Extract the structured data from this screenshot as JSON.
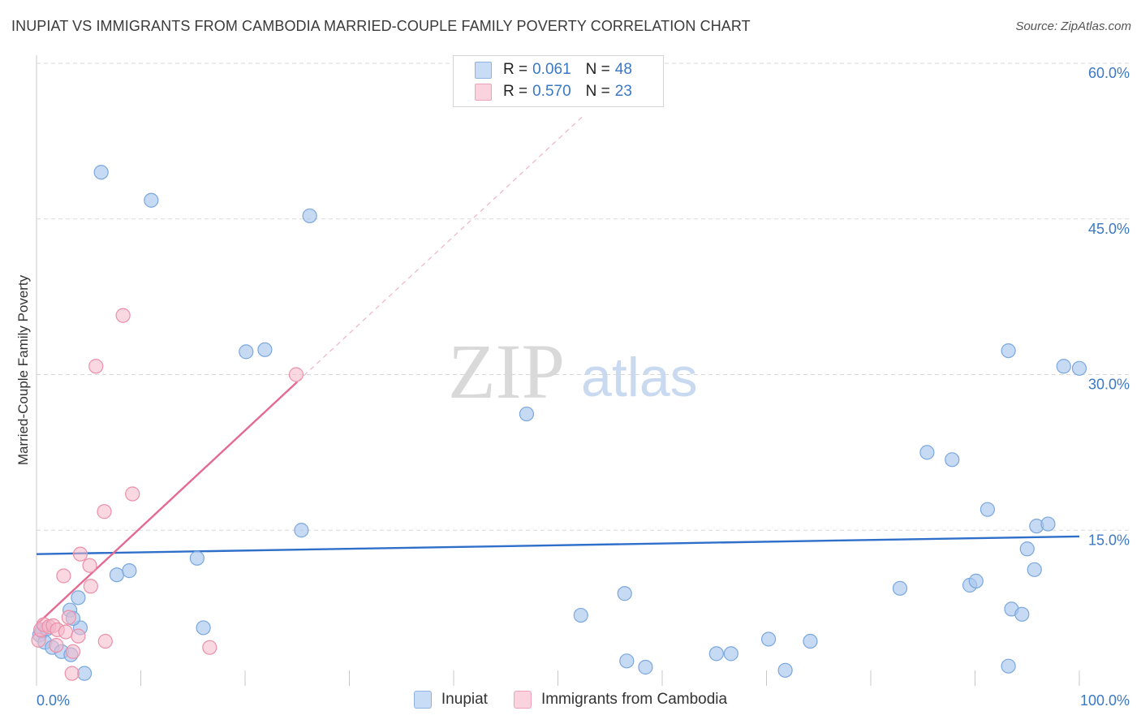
{
  "header": {
    "title": "INUPIAT VS IMMIGRANTS FROM CAMBODIA MARRIED-COUPLE FAMILY POVERTY CORRELATION CHART",
    "source": "Source: ZipAtlas.com"
  },
  "watermark": {
    "zip": "ZIP",
    "atlas": "atlas"
  },
  "legend": {
    "rows": [
      {
        "r_label": "R =",
        "r_value": "0.061",
        "n_label": "N =",
        "n_value": "48",
        "color": "#a9c6ec"
      },
      {
        "r_label": "R =",
        "r_value": "0.570",
        "n_label": "N =",
        "n_value": "23",
        "color": "#f6b8c9"
      }
    ]
  },
  "bottom_legend": {
    "items": [
      {
        "label": "Inupiat",
        "color": "#a9c6ec"
      },
      {
        "label": "Immigrants from Cambodia",
        "color": "#f6b8c9"
      }
    ]
  },
  "chart_data": {
    "type": "scatter",
    "title": "INUPIAT VS IMMIGRANTS FROM CAMBODIA MARRIED-COUPLE FAMILY POVERTY CORRELATION CHART",
    "xlabel": "",
    "ylabel": "Married-Couple Family Poverty",
    "xlim": [
      0,
      100
    ],
    "ylim": [
      0,
      60
    ],
    "y_ticks": [
      15,
      30,
      45,
      60
    ],
    "y_tick_labels": [
      "15.0%",
      "30.0%",
      "45.0%",
      "60.0%"
    ],
    "x_tick_labels": [
      "0.0%",
      "100.0%"
    ],
    "grid": true,
    "series": [
      {
        "name": "Inupiat",
        "color": "#a9c6ec",
        "stroke": "#7aa7de",
        "trend": {
          "x": [
            0,
            100
          ],
          "y": [
            12.7,
            14.4
          ],
          "color": "#2f6fc9",
          "dashed_extension": false
        },
        "points": [
          [
            6.2,
            49.5
          ],
          [
            11.0,
            46.8
          ],
          [
            26.2,
            45.3
          ],
          [
            20.1,
            32.2
          ],
          [
            21.9,
            32.4
          ],
          [
            47.0,
            26.2
          ],
          [
            0.3,
            4.9
          ],
          [
            0.8,
            4.2
          ],
          [
            1.5,
            3.7
          ],
          [
            2.4,
            3.3
          ],
          [
            3.3,
            3.0
          ],
          [
            4.2,
            5.6
          ],
          [
            3.2,
            7.3
          ],
          [
            4.6,
            1.2
          ],
          [
            7.7,
            10.7
          ],
          [
            8.9,
            11.1
          ],
          [
            4.0,
            8.5
          ],
          [
            15.4,
            12.3
          ],
          [
            16.0,
            5.6
          ],
          [
            25.4,
            15.0
          ],
          [
            52.2,
            6.8
          ],
          [
            56.4,
            8.9
          ],
          [
            56.6,
            2.4
          ],
          [
            58.4,
            1.8
          ],
          [
            65.2,
            3.1
          ],
          [
            66.6,
            3.1
          ],
          [
            70.2,
            4.5
          ],
          [
            71.8,
            1.5
          ],
          [
            74.2,
            4.3
          ],
          [
            82.8,
            9.4
          ],
          [
            85.4,
            22.5
          ],
          [
            87.8,
            21.8
          ],
          [
            91.2,
            17.0
          ],
          [
            89.5,
            9.7
          ],
          [
            90.1,
            10.1
          ],
          [
            93.2,
            1.9
          ],
          [
            93.5,
            7.4
          ],
          [
            94.5,
            6.9
          ],
          [
            93.2,
            32.3
          ],
          [
            95.7,
            11.2
          ],
          [
            95.9,
            15.4
          ],
          [
            97.0,
            15.6
          ],
          [
            98.5,
            30.8
          ],
          [
            100.0,
            30.6
          ],
          [
            95.0,
            13.2
          ],
          [
            0.5,
            5.3
          ],
          [
            1.0,
            5.5
          ],
          [
            3.5,
            6.5
          ]
        ]
      },
      {
        "name": "Immigrants from Cambodia",
        "color": "#f6b8c9",
        "stroke": "#ec8fa9",
        "trend": {
          "x": [
            0,
            25.0
          ],
          "y": [
            5.9,
            29.3
          ],
          "extension_x": [
            25.0,
            52.5
          ],
          "extension_y": [
            29.3,
            55.0
          ],
          "color": "#e46a92"
        },
        "points": [
          [
            0.2,
            4.4
          ],
          [
            0.4,
            5.4
          ],
          [
            0.7,
            5.9
          ],
          [
            1.2,
            5.7
          ],
          [
            1.6,
            5.8
          ],
          [
            2.0,
            5.4
          ],
          [
            2.8,
            5.2
          ],
          [
            3.1,
            6.6
          ],
          [
            3.5,
            3.3
          ],
          [
            3.4,
            1.2
          ],
          [
            4.0,
            4.8
          ],
          [
            4.2,
            12.7
          ],
          [
            5.1,
            11.6
          ],
          [
            6.6,
            4.3
          ],
          [
            8.3,
            35.7
          ],
          [
            9.2,
            18.5
          ],
          [
            5.7,
            30.8
          ],
          [
            6.5,
            16.8
          ],
          [
            2.6,
            10.6
          ],
          [
            5.2,
            9.6
          ],
          [
            16.6,
            3.7
          ],
          [
            24.9,
            30.0
          ],
          [
            1.9,
            3.9
          ]
        ]
      }
    ]
  }
}
